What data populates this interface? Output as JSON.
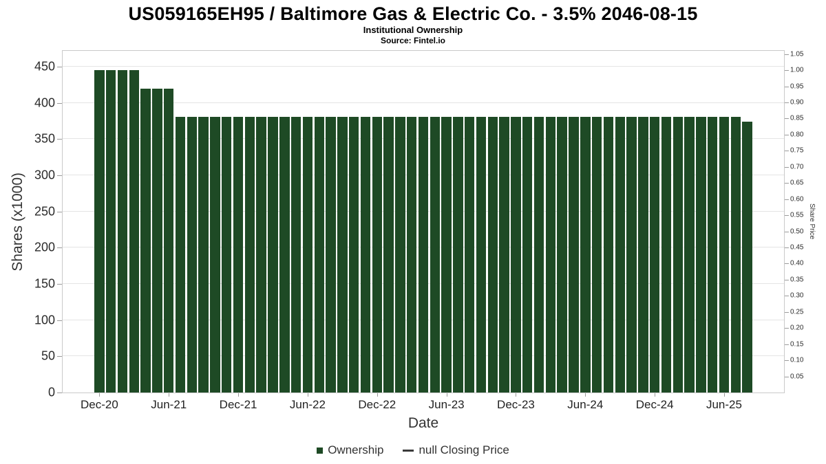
{
  "header": {
    "title": "US059165EH95 / Baltimore Gas & Electric Co. - 3.5% 2046-08-15",
    "subtitle": "Institutional Ownership",
    "source": "Source: Fintel.io"
  },
  "chart_data": {
    "type": "bar",
    "title": "US059165EH95 / Baltimore Gas & Electric Co. - 3.5% 2046-08-15",
    "subtitle": "Institutional Ownership",
    "source": "Source: Fintel.io",
    "xlabel": "Date",
    "ylabel_left": "Shares (x1000)",
    "ylabel_right": "Share Price",
    "ylim_left": [
      0,
      472
    ],
    "ylim_right": [
      0,
      1.06
    ],
    "yticks_left": [
      0,
      50,
      100,
      150,
      200,
      250,
      300,
      350,
      400,
      450
    ],
    "yticks_right": [
      0.05,
      0.1,
      0.15,
      0.2,
      0.25,
      0.3,
      0.35,
      0.4,
      0.45,
      0.5,
      0.55,
      0.6,
      0.65,
      0.7,
      0.75,
      0.8,
      0.85,
      0.9,
      0.95,
      1.0,
      1.05
    ],
    "xtick_labels": [
      "Dec-20",
      "Jun-21",
      "Dec-21",
      "Jun-22",
      "Dec-22",
      "Jun-23",
      "Dec-23",
      "Jun-24",
      "Dec-24",
      "Jun-25"
    ],
    "xtick_bar_indices": [
      0,
      6,
      12,
      18,
      24,
      30,
      36,
      42,
      48,
      54
    ],
    "grid": true,
    "grid_color": "#e4e4e4",
    "bar_color": "#1e4a25",
    "values": [
      445,
      445,
      445,
      445,
      420,
      420,
      420,
      381,
      381,
      381,
      381,
      381,
      381,
      381,
      381,
      381,
      381,
      381,
      381,
      381,
      381,
      381,
      381,
      381,
      381,
      381,
      381,
      381,
      381,
      381,
      381,
      381,
      381,
      381,
      381,
      381,
      381,
      381,
      381,
      381,
      381,
      381,
      381,
      381,
      381,
      381,
      381,
      381,
      381,
      381,
      381,
      381,
      381,
      381,
      381,
      381,
      374
    ],
    "legend": [
      {
        "label": "Ownership",
        "marker": "square",
        "color": "#1e4a25"
      },
      {
        "label": "null Closing Price",
        "marker": "line",
        "color": "#3a3a3a"
      }
    ]
  }
}
